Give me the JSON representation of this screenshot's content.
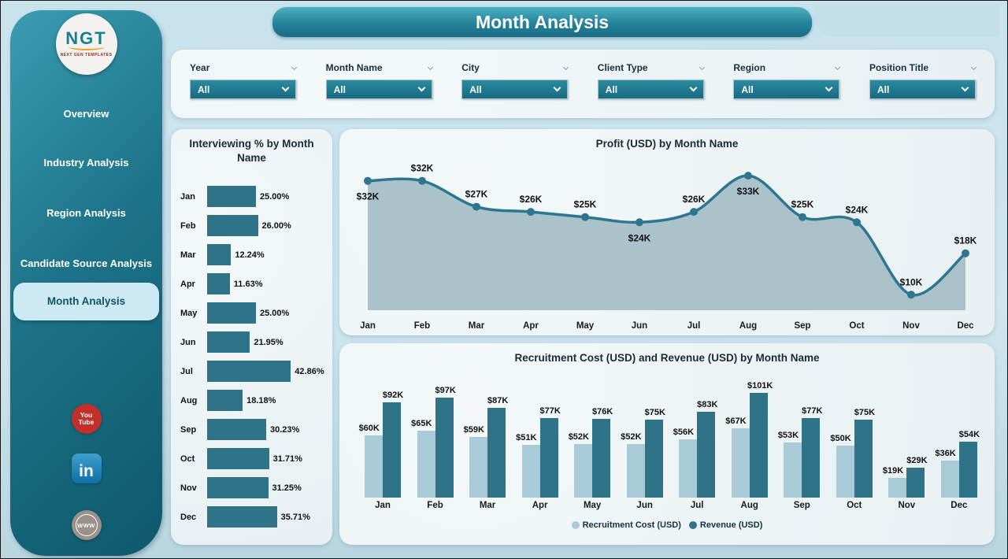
{
  "page": {
    "title": "Month Analysis"
  },
  "logo": {
    "text": "NGT",
    "subtext": "NEXT GEN TEMPLATES"
  },
  "sidebar": {
    "items": [
      {
        "label": "Overview",
        "active": false
      },
      {
        "label": "Industry Analysis",
        "active": false
      },
      {
        "label": "Region Analysis",
        "active": false
      },
      {
        "label": "Candidate Source Analysis",
        "active": false
      },
      {
        "label": "Month Analysis",
        "active": true
      }
    ],
    "social": [
      {
        "name": "youtube",
        "line1": "You",
        "line2": "Tube"
      },
      {
        "name": "linkedin",
        "text": "in"
      },
      {
        "name": "website",
        "text": "WWW"
      }
    ]
  },
  "filters": [
    {
      "label": "Year",
      "value": "All"
    },
    {
      "label": "Month Name",
      "value": "All"
    },
    {
      "label": "City",
      "value": "All"
    },
    {
      "label": "Client Type",
      "value": "All"
    },
    {
      "label": "Region",
      "value": "All"
    },
    {
      "label": "Position Title",
      "value": "All"
    }
  ],
  "colors": {
    "accent_dark": "#2f7389",
    "accent_light": "#a9cbd7",
    "area_fill": "#a4bdc6",
    "line": "#2d7690",
    "label_text": "#111111"
  },
  "chart_data": [
    {
      "id": "interviewing",
      "type": "bar",
      "orientation": "horizontal",
      "title": "Interviewing % by Month Name",
      "categories": [
        "Jan",
        "Feb",
        "Mar",
        "Apr",
        "May",
        "Jun",
        "Jul",
        "Aug",
        "Sep",
        "Oct",
        "Nov",
        "Dec"
      ],
      "values": [
        25.0,
        26.0,
        12.24,
        11.63,
        25.0,
        21.95,
        42.86,
        18.18,
        30.23,
        31.71,
        31.25,
        35.71
      ],
      "labels": [
        "25.00%",
        "26.00%",
        "12.24%",
        "11.63%",
        "25.00%",
        "21.95%",
        "42.86%",
        "18.18%",
        "30.23%",
        "31.71%",
        "31.25%",
        "35.71%"
      ],
      "xlim": [
        0,
        50
      ],
      "grid": false,
      "legend_position": "none"
    },
    {
      "id": "profit",
      "type": "area",
      "title": "Profit (USD) by Month Name",
      "categories": [
        "Jan",
        "Feb",
        "Mar",
        "Apr",
        "May",
        "Jun",
        "Jul",
        "Aug",
        "Sep",
        "Oct",
        "Nov",
        "Dec"
      ],
      "values": [
        32,
        32,
        27,
        26,
        25,
        24,
        26,
        33,
        25,
        24,
        10,
        18
      ],
      "labels": [
        "$32K",
        "$32K",
        "$27K",
        "$26K",
        "$25K",
        "$24K",
        "$26K",
        "$33K",
        "$25K",
        "$24K",
        "$10K",
        "$18K"
      ],
      "label_pos": [
        "below",
        "above",
        "above",
        "above",
        "above",
        "below",
        "above",
        "below",
        "above",
        "above",
        "above",
        "above"
      ],
      "ylim": [
        7,
        35
      ],
      "grid": false,
      "legend_position": "none"
    },
    {
      "id": "cost_revenue",
      "type": "bar",
      "orientation": "vertical",
      "title": "Recruitment Cost (USD) and Revenue (USD) by Month Name",
      "categories": [
        "Jan",
        "Feb",
        "Mar",
        "Apr",
        "May",
        "Jun",
        "Jul",
        "Aug",
        "Sep",
        "Oct",
        "Nov",
        "Dec"
      ],
      "series": [
        {
          "name": "Recruitment Cost (USD)",
          "color_key": "accent_light",
          "values": [
            60,
            65,
            59,
            51,
            52,
            52,
            56,
            67,
            53,
            50,
            19,
            36
          ],
          "labels": [
            "$60K",
            "$65K",
            "$59K",
            "$51K",
            "$52K",
            "$52K",
            "$56K",
            "$67K",
            "$53K",
            "$50K",
            "$19K",
            "$36K"
          ]
        },
        {
          "name": "Revenue (USD)",
          "color_key": "accent_dark",
          "values": [
            92,
            97,
            87,
            77,
            76,
            75,
            83,
            101,
            77,
            75,
            29,
            54
          ],
          "labels": [
            "$92K",
            "$97K",
            "$87K",
            "$77K",
            "$76K",
            "$75K",
            "$83K",
            "$101K",
            "$77K",
            "$75K",
            "$29K",
            "$54K"
          ]
        }
      ],
      "ylim": [
        0,
        105
      ],
      "grid": false,
      "legend_position": "bottom",
      "legend": [
        "Recruitment Cost (USD)",
        "Revenue (USD)"
      ]
    }
  ]
}
